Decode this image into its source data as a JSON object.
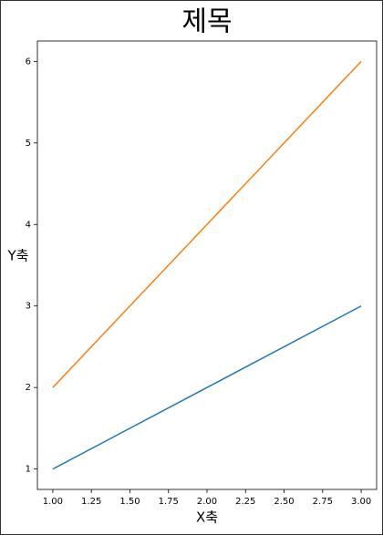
{
  "chart_data": {
    "type": "line",
    "title": "제목",
    "xlabel": "X축",
    "ylabel": "Y축",
    "x": [
      1,
      2,
      3
    ],
    "series": [
      {
        "color": "#1f77b4",
        "values": [
          1,
          2,
          3
        ]
      },
      {
        "color": "#ff7f0e",
        "values": [
          2,
          4,
          6
        ]
      }
    ],
    "xlim": [
      0.9,
      3.1
    ],
    "xticks": [
      {
        "value": 1,
        "label": "1.00"
      },
      {
        "value": 1.25,
        "label": "1.25"
      },
      {
        "value": 1.5,
        "label": "1.50"
      },
      {
        "value": 1.75,
        "label": "1.75"
      },
      {
        "value": 2,
        "label": "2.00"
      },
      {
        "value": 2.25,
        "label": "2.25"
      },
      {
        "value": 2.5,
        "label": "2.50"
      },
      {
        "value": 2.75,
        "label": "2.75"
      },
      {
        "value": 3,
        "label": "3.00"
      }
    ],
    "ylim": [
      0.75,
      6.25
    ],
    "yticks": [
      1,
      2,
      3,
      4,
      5,
      6
    ],
    "grid": false
  }
}
